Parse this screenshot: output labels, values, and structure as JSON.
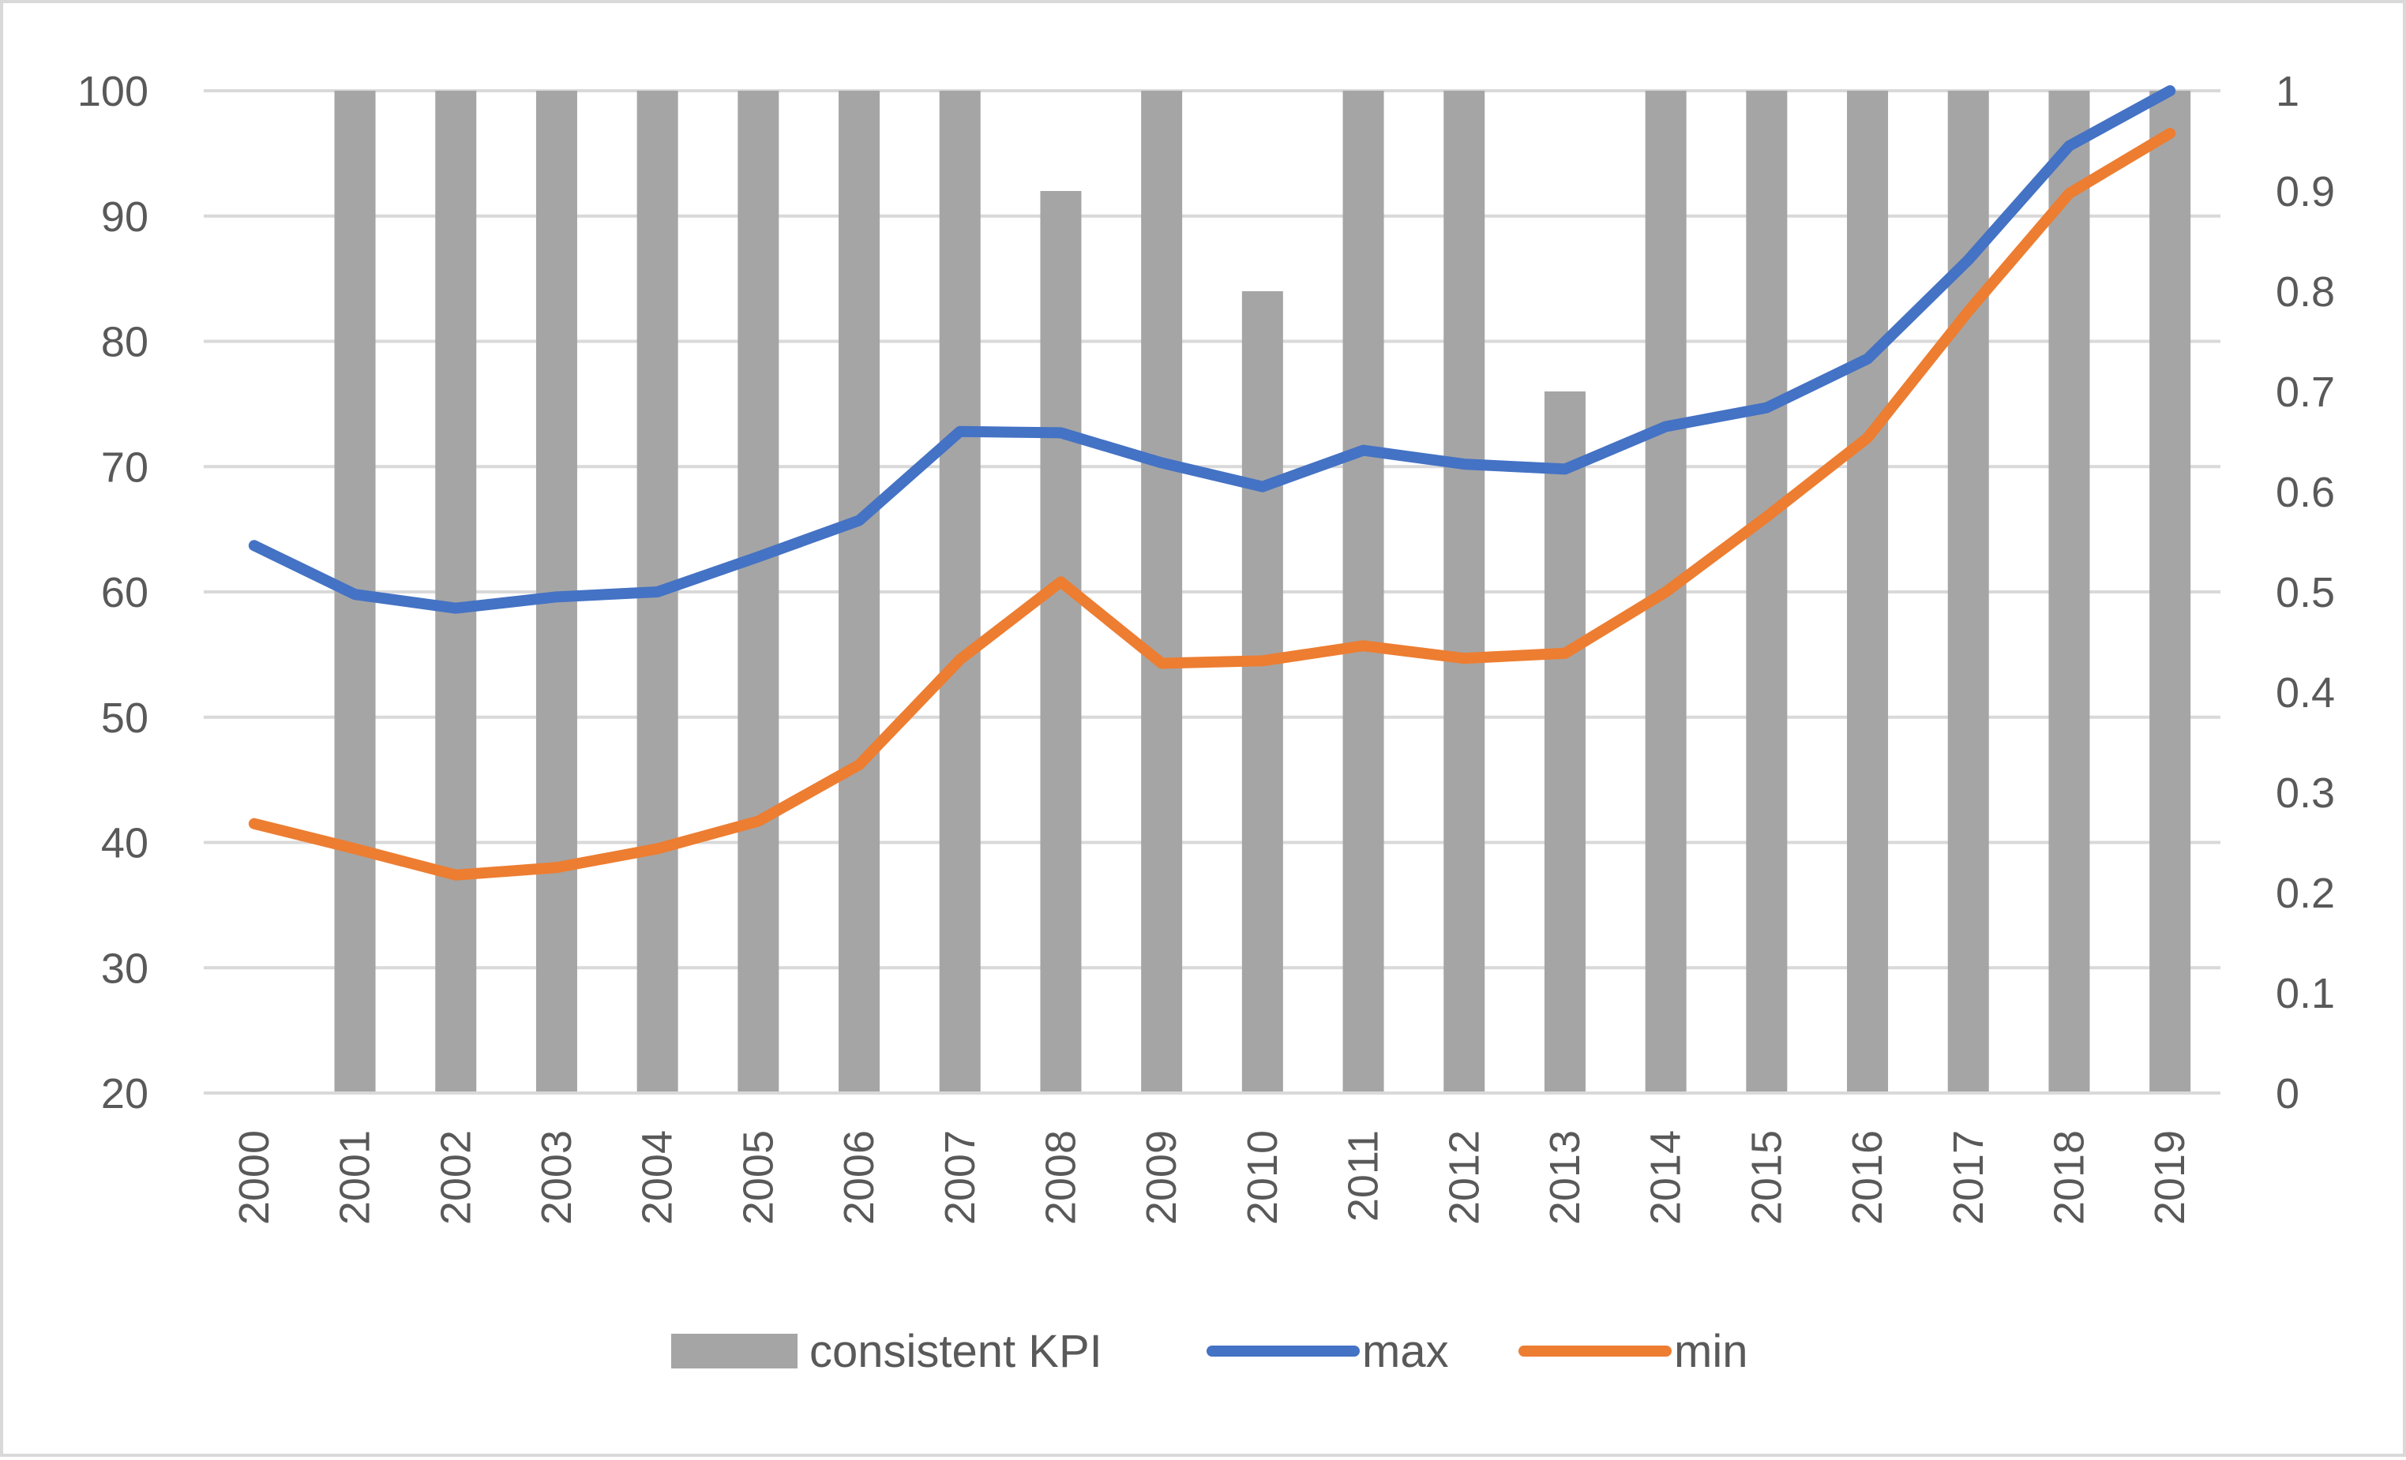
{
  "chart_data": {
    "type": "bar",
    "categories": [
      "2000",
      "2001",
      "2002",
      "2003",
      "2004",
      "2005",
      "2006",
      "2007",
      "2008",
      "2009",
      "2010",
      "2011",
      "2012",
      "2013",
      "2014",
      "2015",
      "2016",
      "2017",
      "2018",
      "2019"
    ],
    "series": [
      {
        "name": "consistent KPI",
        "kind": "bar",
        "axis": "right",
        "color": "#a5a5a5",
        "values": [
          0,
          1,
          1,
          1,
          1,
          1,
          1,
          1,
          0.9,
          1,
          0.8,
          1,
          1,
          0.7,
          1,
          1,
          1,
          1,
          1,
          1
        ]
      },
      {
        "name": "max",
        "kind": "line",
        "axis": "left",
        "color": "#4472c4",
        "values": [
          63.7,
          59.8,
          58.7,
          59.6,
          60.0,
          62.8,
          65.7,
          72.8,
          72.7,
          70.3,
          68.4,
          71.3,
          70.2,
          69.8,
          73.2,
          74.7,
          78.6,
          86.5,
          95.6,
          100
        ]
      },
      {
        "name": "min",
        "kind": "line",
        "axis": "left",
        "color": "#ed7d31",
        "values": [
          41.5,
          39.5,
          37.4,
          38.0,
          39.5,
          41.7,
          46.2,
          54.6,
          60.8,
          54.3,
          54.5,
          55.7,
          54.7,
          55.1,
          60.0,
          66.0,
          72.3,
          82.4,
          91.8,
          96.6
        ]
      }
    ],
    "y_left": {
      "min": 20,
      "max": 100,
      "ticks": [
        "20",
        "30",
        "40",
        "50",
        "60",
        "70",
        "80",
        "90",
        "100"
      ]
    },
    "y_right": {
      "min": 0,
      "max": 1,
      "ticks": [
        "0",
        "0.1",
        "0.2",
        "0.3",
        "0.4",
        "0.5",
        "0.6",
        "0.7",
        "0.8",
        "0.9",
        "1"
      ]
    },
    "grid": true,
    "legend": {
      "position": "bottom"
    },
    "title": "",
    "xlabel": "",
    "ylabel": ""
  }
}
